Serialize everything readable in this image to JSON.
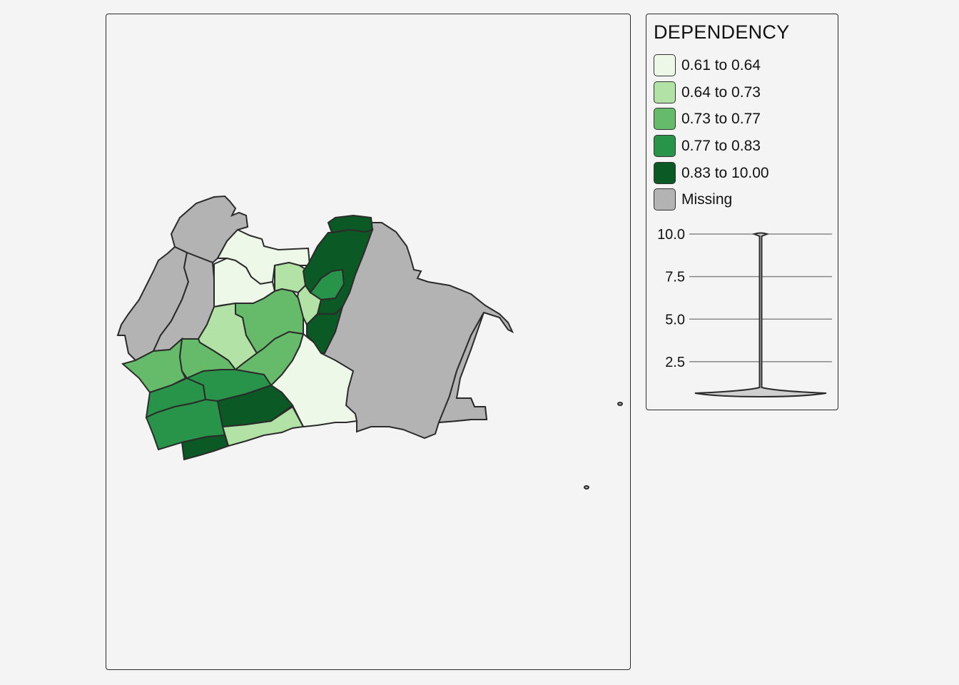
{
  "legend": {
    "title": "DEPENDENCY",
    "items": [
      {
        "label": "0.61 to 0.64",
        "color": "#edf8e9"
      },
      {
        "label": "0.64 to 0.73",
        "color": "#b2e2a6"
      },
      {
        "label": "0.73 to 0.77",
        "color": "#66bb6a"
      },
      {
        "label": "0.77 to 0.83",
        "color": "#28944a"
      },
      {
        "label": "0.83 to 10.00",
        "color": "#0b5a25"
      },
      {
        "label": "Missing",
        "color": "#b3b3b3"
      }
    ]
  },
  "violin": {
    "y_ticks": [
      "10.0",
      "7.5",
      "5.0",
      "2.5"
    ],
    "y_range": [
      0.61,
      10.0
    ]
  },
  "map": {
    "fill_missing": "#b3b3b3",
    "stroke": "#2b2b2b"
  }
}
